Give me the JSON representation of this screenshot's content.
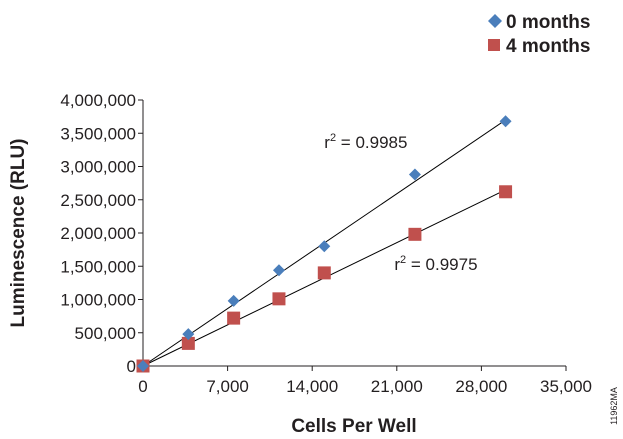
{
  "chart_data": {
    "type": "scatter",
    "xlabel": "Cells Per Well",
    "ylabel": "Luminescence (RLU)",
    "xlim": [
      0,
      35000
    ],
    "ylim": [
      0,
      4000000
    ],
    "x_ticks": [
      0,
      7000,
      14000,
      21000,
      28000,
      35000
    ],
    "x_tick_labels": [
      "0",
      "7,000",
      "14,000",
      "21,000",
      "28,000",
      "35,000"
    ],
    "y_ticks": [
      0,
      500000,
      1000000,
      1500000,
      2000000,
      2500000,
      3000000,
      3500000,
      4000000
    ],
    "y_tick_labels": [
      "0",
      "500,000",
      "1,000,000",
      "1,500,000",
      "2,000,000",
      "2,500,000",
      "3,000,000",
      "3,500,000",
      "4,000,000"
    ],
    "grid": false,
    "legend_position": "top-right",
    "series": [
      {
        "name": "0 months",
        "marker": "diamond",
        "color": "#4a7ebb",
        "x": [
          0,
          3750,
          7500,
          11250,
          15000,
          22500,
          30000
        ],
        "y": [
          0,
          480000,
          980000,
          1440000,
          1800000,
          2880000,
          3680000
        ],
        "trendline": {
          "x": [
            0,
            30000
          ],
          "y": [
            0,
            3700000
          ]
        },
        "r2_label": "r",
        "r2_sup": "2",
        "r2_value": " = 0.9985",
        "r2_anchor": {
          "x": 15000,
          "y": 3280000
        }
      },
      {
        "name": "4 months",
        "marker": "square",
        "color": "#c0504d",
        "x": [
          0,
          3750,
          7500,
          11250,
          15000,
          22500,
          30000
        ],
        "y": [
          0,
          340000,
          720000,
          1010000,
          1400000,
          1980000,
          2620000
        ],
        "trendline": {
          "x": [
            0,
            30000
          ],
          "y": [
            0,
            2650000
          ]
        },
        "r2_label": "r",
        "r2_sup": "2",
        "r2_value": " = 0.9975",
        "r2_anchor": {
          "x": 20800,
          "y": 1440000
        }
      }
    ]
  },
  "figure_id": "11962MA"
}
